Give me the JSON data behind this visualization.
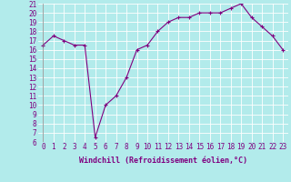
{
  "x": [
    0,
    1,
    2,
    3,
    4,
    5,
    6,
    7,
    8,
    9,
    10,
    11,
    12,
    13,
    14,
    15,
    16,
    17,
    18,
    19,
    20,
    21,
    22,
    23
  ],
  "y": [
    16.5,
    17.5,
    17.0,
    16.5,
    16.5,
    6.5,
    10.0,
    11.0,
    13.0,
    16.0,
    16.5,
    18.0,
    19.0,
    19.5,
    19.5,
    20.0,
    20.0,
    20.0,
    20.5,
    21.0,
    19.5,
    18.5,
    17.5,
    16.0
  ],
  "line_color": "#800080",
  "marker": "+",
  "marker_size": 3,
  "xlabel": "Windchill (Refroidissement éolien,°C)",
  "xlim": [
    -0.5,
    23.5
  ],
  "ylim": [
    6,
    21
  ],
  "yticks": [
    6,
    7,
    8,
    9,
    10,
    11,
    12,
    13,
    14,
    15,
    16,
    17,
    18,
    19,
    20,
    21
  ],
  "xticks": [
    0,
    1,
    2,
    3,
    4,
    5,
    6,
    7,
    8,
    9,
    10,
    11,
    12,
    13,
    14,
    15,
    16,
    17,
    18,
    19,
    20,
    21,
    22,
    23
  ],
  "background_color": "#b2ebeb",
  "grid_color": "#ffffff",
  "tick_label_color": "#800080",
  "axis_label_color": "#800080",
  "label_fontsize": 6.0,
  "tick_fontsize": 5.5,
  "linewidth": 0.8
}
